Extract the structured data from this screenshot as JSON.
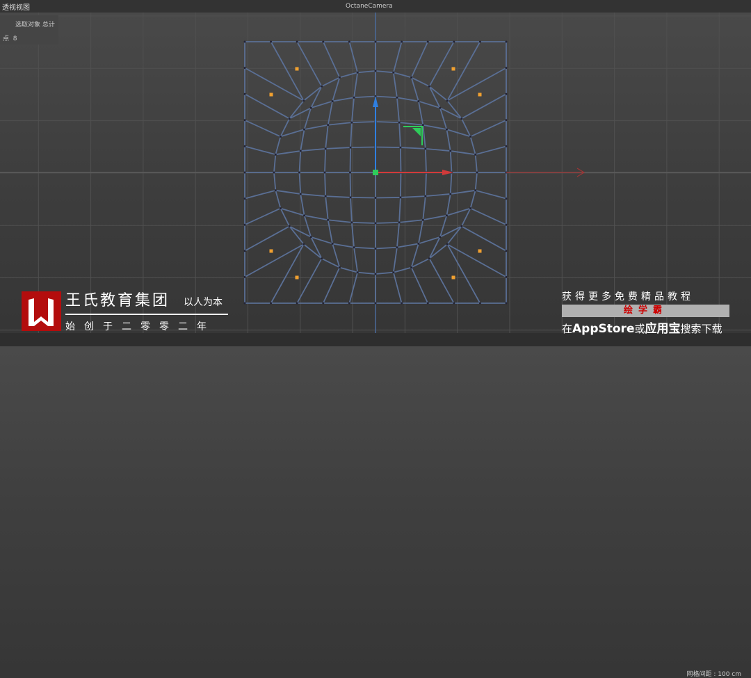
{
  "viewport": {
    "title": "透视视图",
    "camera": "OctaneCamera",
    "info_header": "选取对象 总计",
    "info_row_label": "点",
    "info_row_value": "8",
    "grid_spacing": "网格间距 : 100 cm"
  },
  "colors": {
    "x_axis": "#d23a3a",
    "y_axis": "#2f7fe0",
    "z_axis": "#2ecc5a",
    "mesh": "#5a6f95",
    "selected_point": "#f0a030",
    "logo": "#b30d0d"
  },
  "watermark": {
    "brand": "王氏教育集团",
    "motto": "以人为本",
    "since": "始创于二零零二年",
    "promo_line1": "获得更多免费精品教程",
    "promo_line2": "绘学霸",
    "promo_line3_a": "在",
    "promo_line3_b": "AppStore",
    "promo_line3_c": "或",
    "promo_line3_d": "应用宝",
    "promo_line3_e": "搜索下载"
  }
}
